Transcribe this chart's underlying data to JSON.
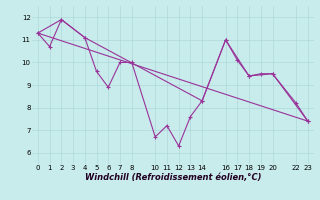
{
  "xlabel": "Windchill (Refroidissement éolien,°C)",
  "background_color": "#c8ecec",
  "grid_color": "#b0d8d8",
  "line_color": "#993399",
  "xlim": [
    -0.5,
    23.5
  ],
  "ylim": [
    5.5,
    12.5
  ],
  "xticks": [
    0,
    1,
    2,
    3,
    4,
    5,
    6,
    7,
    8,
    10,
    11,
    12,
    13,
    14,
    16,
    17,
    18,
    19,
    20,
    22,
    23
  ],
  "yticks": [
    6,
    7,
    8,
    9,
    10,
    11,
    12
  ],
  "series1_x": [
    0,
    1,
    2,
    4,
    5,
    6,
    7,
    8,
    10,
    11,
    12,
    13,
    14,
    16,
    17,
    18,
    19,
    20,
    22,
    23
  ],
  "series1_y": [
    11.3,
    10.7,
    11.9,
    11.1,
    9.6,
    8.9,
    10.0,
    10.0,
    6.7,
    7.2,
    6.3,
    7.6,
    8.3,
    11.0,
    10.1,
    9.4,
    9.5,
    9.5,
    8.2,
    7.4
  ],
  "series2_x": [
    0,
    23
  ],
  "series2_y": [
    11.3,
    7.4
  ],
  "series3_x": [
    0,
    2,
    4,
    14,
    16,
    18,
    20,
    23
  ],
  "series3_y": [
    11.3,
    11.9,
    11.1,
    8.3,
    11.0,
    9.4,
    9.5,
    7.4
  ],
  "xlabel_fontsize": 6,
  "tick_fontsize": 5,
  "linewidth": 0.8,
  "markersize": 3.0
}
